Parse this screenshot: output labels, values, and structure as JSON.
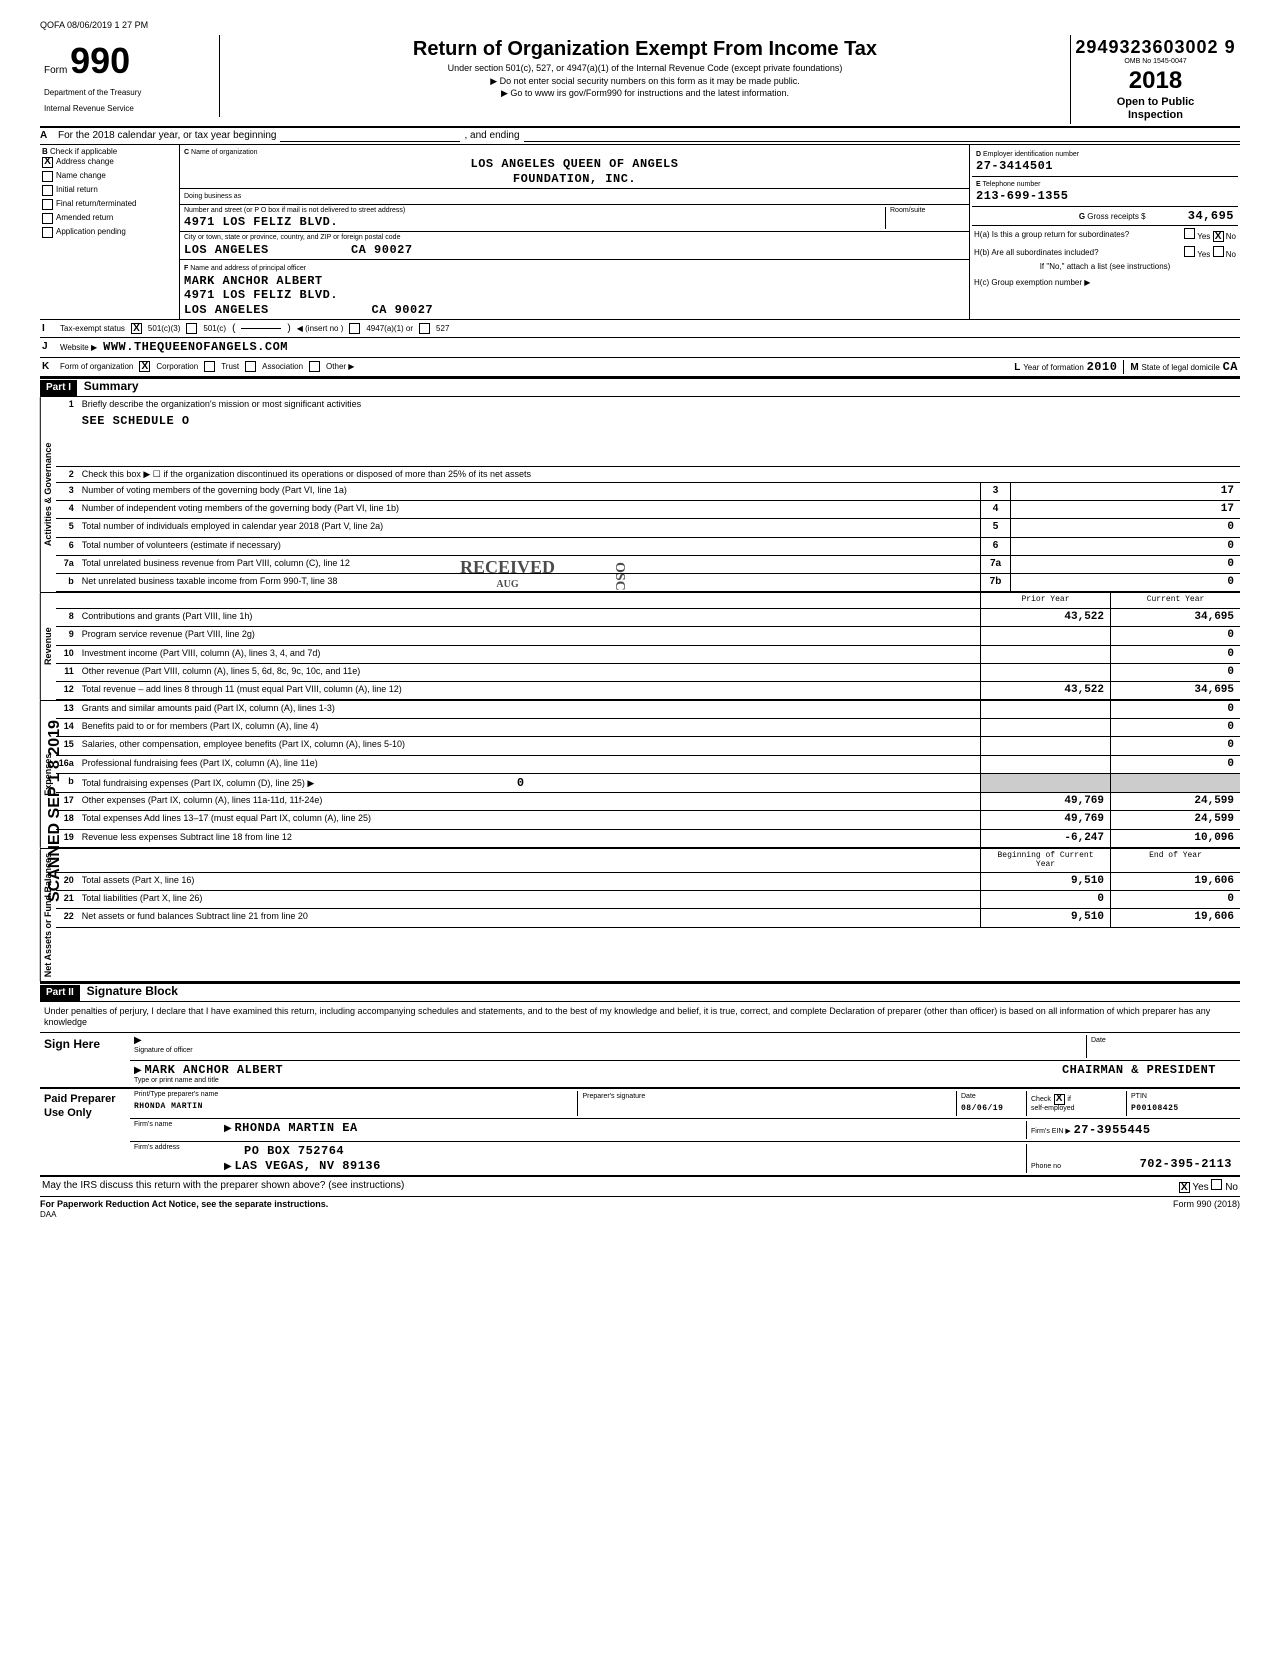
{
  "meta": {
    "top_stamp": "QOFA 08/06/2019 1 27 PM",
    "scanned_label": "SCANNED SEP 1 8 2019"
  },
  "header": {
    "form_word": "Form",
    "form_number": "990",
    "dept1": "Department of the Treasury",
    "dept2": "Internal Revenue Service",
    "title": "Return of Organization Exempt From Income Tax",
    "subtitle": "Under section 501(c), 527, or 4947(a)(1) of the Internal Revenue Code (except private foundations)",
    "line1": "▶ Do not enter social security numbers on this form as it may be made public.",
    "line2": "▶ Go to www irs gov/Form990 for instructions and the latest information.",
    "dln": "2949323603002 9",
    "omb": "OMB No 1545-0047",
    "tax_year": "2018",
    "open": "Open to Public",
    "inspection": "Inspection"
  },
  "section_a": {
    "label": "A",
    "text": "For the 2018 calendar year, or tax year beginning",
    "ending": ", and ending"
  },
  "section_b": {
    "label": "B",
    "check_label": "Check if applicable",
    "items": [
      {
        "label": "Address change",
        "checked": true
      },
      {
        "label": "Name change",
        "checked": false
      },
      {
        "label": "Initial return",
        "checked": false
      },
      {
        "label": "Final return/terminated",
        "checked": false
      },
      {
        "label": "Amended return",
        "checked": false
      },
      {
        "label": "Application pending",
        "checked": false
      }
    ]
  },
  "section_c": {
    "label": "C",
    "name_label": "Name of organization",
    "name1": "LOS ANGELES QUEEN OF ANGELS",
    "name2": "FOUNDATION, INC.",
    "dba_label": "Doing business as",
    "street_label": "Number and street (or P O box if mail is not delivered to street address)",
    "street": "4971 LOS FELIZ BLVD.",
    "room_label": "Room/suite",
    "city_label": "City or town, state or province, country, and ZIP or foreign postal code",
    "city": "LOS ANGELES",
    "state_zip": "CA  90027",
    "officer_label": "Name and address of principal officer",
    "officer_f": "F",
    "officer_name": "MARK ANCHOR ALBERT",
    "officer_street": "4971 LOS FELIZ BLVD.",
    "officer_city": "LOS ANGELES",
    "officer_state_zip": "CA  90027"
  },
  "section_d": {
    "label": "D",
    "ein_label": "Employer identification number",
    "ein": "27-3414501",
    "phone_label_e": "E",
    "phone_label": "Telephone number",
    "phone": "213-699-1355",
    "gross_label_g": "G",
    "gross_label": "Gross receipts $",
    "gross": "34,695"
  },
  "section_h": {
    "ha_label": "H(a) Is this a group return for subordinates?",
    "ha_yes": "Yes",
    "ha_no": "No",
    "ha_no_checked": true,
    "hb_label": "H(b) Are all subordinates included?",
    "hb_yes": "Yes",
    "hb_no": "No",
    "hb_note": "If \"No,\" attach a list (see instructions)",
    "hc_label": "H(c) Group exemption number ▶"
  },
  "row_i": {
    "label": "I",
    "text": "Tax-exempt status",
    "opt1": "501(c)(3)",
    "opt1_checked": true,
    "opt2": "501(c)",
    "insert": "◀ (insert no )",
    "opt3": "4947(a)(1) or",
    "opt4": "527"
  },
  "row_j": {
    "label": "J",
    "text": "Website ▶",
    "value": "WWW.THEQUEENOFANGELS.COM"
  },
  "row_k": {
    "label": "K",
    "text": "Form of organization",
    "corp": "Corporation",
    "corp_checked": true,
    "trust": "Trust",
    "assoc": "Association",
    "other": "Other ▶",
    "l_label": "L",
    "year_label": "Year of formation",
    "year": "2010",
    "m_label": "M",
    "state_label": "State of legal domicile",
    "state": "CA"
  },
  "part1": {
    "part": "Part I",
    "title": "Summary",
    "groups": [
      {
        "vlabel": "Activities & Governance",
        "rows": [
          {
            "num": "1",
            "text": "Briefly describe the organization's mission or most significant activities",
            "val_text": "SEE SCHEDULE O",
            "tall": true
          },
          {
            "num": "2",
            "text": "Check this box ▶ ☐ if the organization discontinued its operations or disposed of more than 25% of its net assets"
          },
          {
            "num": "3",
            "text": "Number of voting members of the governing body (Part VI, line 1a)",
            "box": "3",
            "cur": "17"
          },
          {
            "num": "4",
            "text": "Number of independent voting members of the governing body (Part VI, line 1b)",
            "box": "4",
            "cur": "17"
          },
          {
            "num": "5",
            "text": "Total number of individuals employed in calendar year 2018 (Part V, line 2a)",
            "box": "5",
            "cur": "0"
          },
          {
            "num": "6",
            "text": "Total number of volunteers (estimate if necessary)",
            "box": "6",
            "cur": "0"
          },
          {
            "num": "7a",
            "text": "Total unrelated business revenue from Part VIII, column (C), line 12",
            "box": "7a",
            "cur": "0"
          },
          {
            "num": "b",
            "text": "Net unrelated business taxable income from Form 990-T, line 38",
            "box": "7b",
            "cur": "0"
          }
        ]
      },
      {
        "vlabel": "Revenue",
        "header": {
          "prior": "Prior Year",
          "current": "Current Year"
        },
        "rows": [
          {
            "num": "8",
            "text": "Contributions and grants (Part VIII, line 1h)",
            "prior": "43,522",
            "cur": "34,695"
          },
          {
            "num": "9",
            "text": "Program service revenue (Part VIII, line 2g)",
            "prior": "",
            "cur": "0"
          },
          {
            "num": "10",
            "text": "Investment income (Part VIII, column (A), lines 3, 4, and 7d)",
            "prior": "",
            "cur": "0"
          },
          {
            "num": "11",
            "text": "Other revenue (Part VIII, column (A), lines 5, 6d, 8c, 9c, 10c, and 11e)",
            "prior": "",
            "cur": "0"
          },
          {
            "num": "12",
            "text": "Total revenue – add lines 8 through 11 (must equal Part VIII, column (A), line 12)",
            "prior": "43,522",
            "cur": "34,695"
          }
        ]
      },
      {
        "vlabel": "Expenses",
        "rows": [
          {
            "num": "13",
            "text": "Grants and similar amounts paid (Part IX, column (A), lines 1-3)",
            "prior": "",
            "cur": "0"
          },
          {
            "num": "14",
            "text": "Benefits paid to or for members (Part IX, column (A), line 4)",
            "prior": "",
            "cur": "0"
          },
          {
            "num": "15",
            "text": "Salaries, other compensation, employee benefits (Part IX, column (A), lines 5-10)",
            "prior": "",
            "cur": "0"
          },
          {
            "num": "16a",
            "text": "Professional fundraising fees (Part IX, column (A), line 11e)",
            "prior": "",
            "cur": "0"
          },
          {
            "num": "b",
            "text": "Total fundraising expenses (Part IX, column (D), line 25) ▶",
            "inline_val": "0",
            "prior_grey": true,
            "cur_grey": true
          },
          {
            "num": "17",
            "text": "Other expenses (Part IX, column (A), lines 11a-11d, 11f-24e)",
            "prior": "49,769",
            "cur": "24,599"
          },
          {
            "num": "18",
            "text": "Total expenses Add lines 13–17 (must equal Part IX, column (A), line 25)",
            "prior": "49,769",
            "cur": "24,599"
          },
          {
            "num": "19",
            "text": "Revenue less expenses Subtract line 18 from line 12",
            "prior": "-6,247",
            "cur": "10,096"
          }
        ]
      },
      {
        "vlabel": "Net Assets or Fund Balances",
        "header": {
          "prior": "Beginning of Current Year",
          "current": "End of Year"
        },
        "rows": [
          {
            "num": "20",
            "text": "Total assets (Part X, line 16)",
            "prior": "9,510",
            "cur": "19,606"
          },
          {
            "num": "21",
            "text": "Total liabilities (Part X, line 26)",
            "prior": "0",
            "cur": "0"
          },
          {
            "num": "22",
            "text": "Net assets or fund balances Subtract line 21 from line 20",
            "prior": "9,510",
            "cur": "19,606"
          }
        ]
      }
    ],
    "received_stamp": "RECEIVED",
    "received_sub": "AUG",
    "osc": "OSC"
  },
  "part2": {
    "part": "Part II",
    "title": "Signature Block",
    "declaration": "Under penalties of perjury, I declare that I have examined this return, including accompanying schedules and statements, and to the best of my knowledge and belief, it is true, correct, and complete Declaration of preparer (other than officer) is based on all information of which preparer has any knowledge"
  },
  "sign": {
    "sign_here": "Sign Here",
    "sig_officer": "Signature of officer",
    "date_label": "Date",
    "name": "MARK ANCHOR ALBERT",
    "title": "CHAIRMAN & PRESIDENT",
    "type_label": "Type or print name and title"
  },
  "preparer": {
    "label": "Paid Preparer Use Only",
    "print_label": "Print/Type preparer's name",
    "print_name": "RHONDA MARTIN",
    "sig_label": "Preparer's signature",
    "date_label": "Date",
    "date": "08/06/19",
    "check_label": "Check",
    "check_if": "if",
    "self_emp": "self-employed",
    "self_checked": true,
    "ptin_label": "PTIN",
    "ptin": "P00108425",
    "firm_name_label": "Firm's name",
    "firm_name": "RHONDA MARTIN EA",
    "firm_ein_label": "Firm's EIN ▶",
    "firm_ein": "27-3955445",
    "firm_addr_label": "Firm's address",
    "firm_addr1": "PO BOX 752764",
    "firm_addr2": "LAS VEGAS, NV   89136",
    "phone_label": "Phone no",
    "phone": "702-395-2113"
  },
  "footer": {
    "discuss": "May the IRS discuss this return with the preparer shown above? (see instructions)",
    "yes": "Yes",
    "yes_checked": true,
    "no": "No",
    "paperwork": "For Paperwork Reduction Act Notice, see the separate instructions.",
    "daa": "DAA",
    "form_ref": "Form 990 (2018)"
  },
  "colors": {
    "border": "#000000",
    "grey": "#cccccc",
    "bg": "#ffffff"
  }
}
